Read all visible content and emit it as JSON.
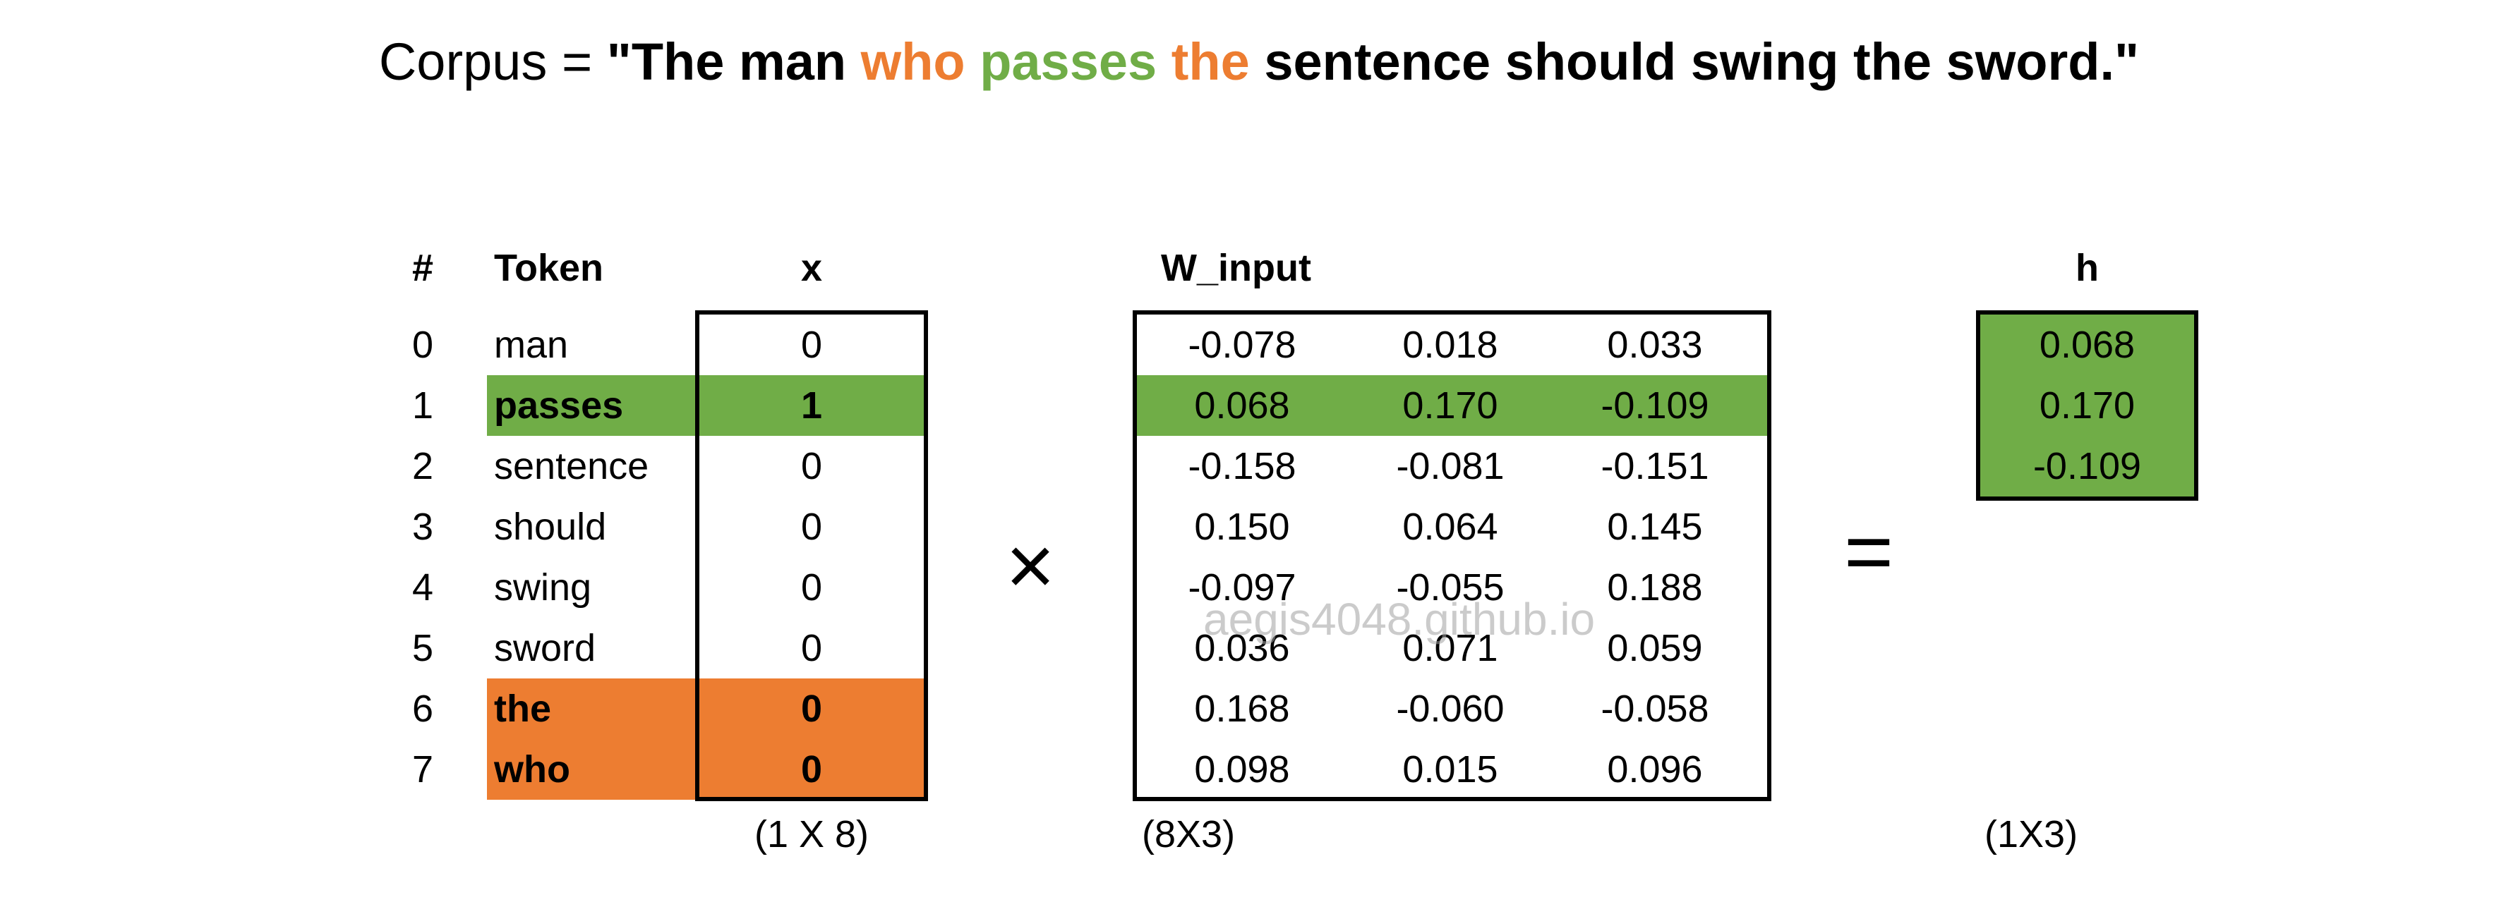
{
  "title": {
    "prefix": "Corpus = ",
    "segments": [
      {
        "text": "\"The man ",
        "color": "#000000"
      },
      {
        "text": "who ",
        "color": "#ED7D31"
      },
      {
        "text": "passes ",
        "color": "#70AD47"
      },
      {
        "text": "the ",
        "color": "#ED7D31"
      },
      {
        "text": "sentence should swing the sword.\"",
        "color": "#000000"
      }
    ]
  },
  "headers": {
    "index": "#",
    "token": "Token",
    "x": "x",
    "w_input": "W_input",
    "h": "h"
  },
  "colors": {
    "target_word": "#70AD47",
    "context_word": "#ED7D31"
  },
  "rows": [
    {
      "index": "0",
      "token": "man",
      "x": "0",
      "w": [
        "-0.078",
        "0.018",
        "0.033"
      ],
      "highlight": "none"
    },
    {
      "index": "1",
      "token": "passes",
      "x": "1",
      "w": [
        "0.068",
        "0.170",
        "-0.109"
      ],
      "highlight": "target"
    },
    {
      "index": "2",
      "token": "sentence",
      "x": "0",
      "w": [
        "-0.158",
        "-0.081",
        "-0.151"
      ],
      "highlight": "none"
    },
    {
      "index": "3",
      "token": "should",
      "x": "0",
      "w": [
        "0.150",
        "0.064",
        "0.145"
      ],
      "highlight": "none"
    },
    {
      "index": "4",
      "token": "swing",
      "x": "0",
      "w": [
        "-0.097",
        "-0.055",
        "0.188"
      ],
      "highlight": "none"
    },
    {
      "index": "5",
      "token": "sword",
      "x": "0",
      "w": [
        "0.036",
        "0.071",
        "0.059"
      ],
      "highlight": "none"
    },
    {
      "index": "6",
      "token": "the",
      "x": "0",
      "w": [
        "0.168",
        "-0.060",
        "-0.058"
      ],
      "highlight": "context"
    },
    {
      "index": "7",
      "token": "who",
      "x": "0",
      "w": [
        "0.098",
        "0.015",
        "0.096"
      ],
      "highlight": "context"
    }
  ],
  "h": [
    "0.068",
    "0.170",
    "-0.109"
  ],
  "operators": {
    "times": "×",
    "equals": "="
  },
  "dimensions": {
    "x": "(1 X 8)",
    "w_input": "(8X3)",
    "h": "(1X3)"
  },
  "watermark": "aegis4048.github.io"
}
